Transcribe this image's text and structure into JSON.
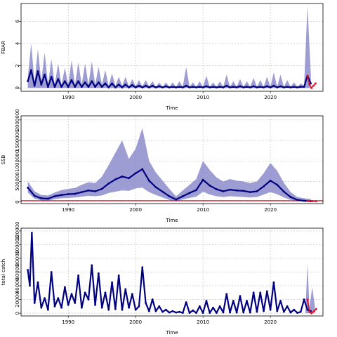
{
  "chart_data": [
    {
      "type": "line",
      "panel": "fbar",
      "xlabel": "Time",
      "ylabel": "FBAR",
      "xlim": [
        1983.0,
        2027.8
      ],
      "ylim": [
        -0.3,
        7.6
      ],
      "xticks": [
        1990,
        2000,
        2010,
        2020
      ],
      "yticks": [
        0,
        2,
        4,
        6
      ],
      "ytick_labels": [
        "0",
        "2",
        "4",
        "6"
      ],
      "grid": true,
      "colors": {
        "median": "#00007f",
        "band": "#8c8ccc",
        "projection": "#e0102a"
      },
      "series": [
        {
          "role": "median",
          "x": [
            1984,
            1984.5,
            1985,
            1985.5,
            1986,
            1986.5,
            1987,
            1987.5,
            1988,
            1988.5,
            1989,
            1989.5,
            1990,
            1990.5,
            1991,
            1991.5,
            1992,
            1992.5,
            1993,
            1993.5,
            1994,
            1994.5,
            1995,
            1995.5,
            1996,
            1996.5,
            1997,
            1997.5,
            1998,
            1998.5,
            1999,
            1999.5,
            2000,
            2000.5,
            2001,
            2001.5,
            2002,
            2002.5,
            2003,
            2003.5,
            2004,
            2004.5,
            2005,
            2005.5,
            2006,
            2006.5,
            2007,
            2007.5,
            2008,
            2008.5,
            2009,
            2009.5,
            2010,
            2010.5,
            2011,
            2011.5,
            2012,
            2012.5,
            2013,
            2013.5,
            2014,
            2014.5,
            2015,
            2015.5,
            2016,
            2016.5,
            2017,
            2017.5,
            2018,
            2018.5,
            2019,
            2019.5,
            2020,
            2020.5,
            2021,
            2021.5,
            2022,
            2022.5,
            2023,
            2023.5,
            2024,
            2024.5,
            2025,
            2025.5,
            2026
          ],
          "y": [
            0.6,
            1.6,
            0.2,
            1.5,
            0.3,
            1.2,
            0.1,
            1.0,
            0.1,
            0.8,
            0.1,
            0.6,
            0.1,
            0.7,
            0.1,
            0.6,
            0.1,
            0.5,
            0.1,
            0.6,
            0.1,
            0.5,
            0.1,
            0.4,
            0.05,
            0.4,
            0.05,
            0.3,
            0.05,
            0.3,
            0.05,
            0.25,
            0.05,
            0.2,
            0.05,
            0.2,
            0.05,
            0.2,
            0.05,
            0.15,
            0.05,
            0.15,
            0.05,
            0.1,
            0.05,
            0.1,
            0.05,
            0.2,
            0.05,
            0.1,
            0.05,
            0.1,
            0.05,
            0.15,
            0.05,
            0.1,
            0.05,
            0.1,
            0.05,
            0.2,
            0.05,
            0.1,
            0.05,
            0.15,
            0.05,
            0.1,
            0.05,
            0.15,
            0.05,
            0.1,
            0.05,
            0.15,
            0.05,
            0.2,
            0.05,
            0.15,
            0.05,
            0.1,
            0.05,
            0.1,
            0.05,
            0.1,
            0.1,
            1.1,
            0.4
          ]
        },
        {
          "role": "upper",
          "x": [
            1984,
            1984.5,
            1985,
            1985.5,
            1986,
            1986.5,
            1987,
            1987.5,
            1988,
            1988.5,
            1989,
            1989.5,
            1990,
            1990.5,
            1991,
            1991.5,
            1992,
            1992.5,
            1993,
            1993.5,
            1994,
            1994.5,
            1995,
            1995.5,
            1996,
            1996.5,
            1997,
            1997.5,
            1998,
            1998.5,
            1999,
            1999.5,
            2000,
            2000.5,
            2001,
            2001.5,
            2002,
            2002.5,
            2003,
            2003.5,
            2004,
            2004.5,
            2005,
            2005.5,
            2006,
            2006.5,
            2007,
            2007.5,
            2008,
            2008.5,
            2009,
            2009.5,
            2010,
            2010.5,
            2011,
            2011.5,
            2012,
            2012.5,
            2013,
            2013.5,
            2014,
            2014.5,
            2015,
            2015.5,
            2016,
            2016.5,
            2017,
            2017.5,
            2018,
            2018.5,
            2019,
            2019.5,
            2020,
            2020.5,
            2021,
            2021.5,
            2022,
            2022.5,
            2023,
            2023.5,
            2024,
            2024.5,
            2025,
            2025.5,
            2026
          ],
          "y": [
            0.9,
            4.0,
            0.5,
            3.5,
            0.6,
            3.2,
            0.3,
            2.6,
            0.3,
            2.2,
            0.3,
            1.8,
            0.3,
            2.5,
            0.3,
            2.3,
            0.3,
            2.2,
            0.3,
            2.4,
            0.3,
            1.9,
            0.3,
            1.6,
            0.2,
            1.3,
            0.2,
            1.0,
            0.2,
            1.0,
            0.15,
            0.8,
            0.15,
            0.7,
            0.15,
            0.7,
            0.15,
            0.6,
            0.1,
            0.5,
            0.1,
            0.5,
            0.1,
            0.5,
            0.1,
            0.6,
            0.1,
            1.9,
            0.1,
            0.5,
            0.1,
            0.6,
            0.1,
            1.1,
            0.1,
            0.5,
            0.1,
            0.6,
            0.1,
            1.2,
            0.1,
            0.6,
            0.1,
            0.8,
            0.1,
            0.6,
            0.1,
            0.9,
            0.1,
            0.7,
            0.1,
            1.0,
            0.1,
            1.4,
            0.1,
            1.2,
            0.1,
            0.7,
            0.1,
            0.5,
            0.1,
            0.4,
            0.2,
            7.4,
            1.2
          ]
        },
        {
          "role": "lower",
          "x": [
            1984,
            2026
          ],
          "y": [
            0,
            0
          ]
        },
        {
          "role": "projection",
          "x": [
            2025.5,
            2025.8,
            2026.1,
            2026.4,
            2026.7
          ],
          "y": [
            1.1,
            0.3,
            0.0,
            0.2,
            0.4
          ]
        }
      ]
    },
    {
      "type": "line",
      "panel": "ssb",
      "xlabel": "Time",
      "ylabel": "SSB",
      "xlim": [
        1983.0,
        2027.8
      ],
      "ylim": [
        -40000,
        2100000
      ],
      "xticks": [
        1990,
        2000,
        2010,
        2020
      ],
      "yticks": [
        0,
        500000,
        1000000,
        1500000,
        2000000
      ],
      "ytick_labels": [
        "0",
        "500000",
        "1000000",
        "1500000",
        "2000000"
      ],
      "grid": true,
      "reference_line": 30000,
      "colors": {
        "median": "#00007f",
        "band": "#8c8ccc",
        "reference": "#e0102a"
      },
      "series": [
        {
          "role": "median",
          "x": [
            1984,
            1985,
            1986,
            1987,
            1988,
            1989,
            1990,
            1991,
            1992,
            1993,
            1994,
            1995,
            1996,
            1997,
            1998,
            1999,
            2000,
            2001,
            2002,
            2003,
            2004,
            2005,
            2006,
            2007,
            2008,
            2009,
            2010,
            2011,
            2012,
            2013,
            2014,
            2015,
            2016,
            2017,
            2018,
            2019,
            2020,
            2021,
            2022,
            2023,
            2024,
            2025,
            2026
          ],
          "y": [
            350000,
            150000,
            90000,
            80000,
            140000,
            170000,
            190000,
            200000,
            240000,
            280000,
            260000,
            320000,
            450000,
            550000,
            620000,
            580000,
            700000,
            800000,
            520000,
            360000,
            250000,
            140000,
            60000,
            140000,
            220000,
            290000,
            540000,
            400000,
            310000,
            260000,
            300000,
            280000,
            270000,
            240000,
            260000,
            380000,
            520000,
            420000,
            250000,
            120000,
            50000,
            30000,
            20000
          ]
        },
        {
          "role": "upper",
          "x": [
            1984,
            1985,
            1986,
            1987,
            1988,
            1989,
            1990,
            1991,
            1992,
            1993,
            1994,
            1995,
            1996,
            1997,
            1998,
            1999,
            2000,
            2001,
            2002,
            2003,
            2004,
            2005,
            2006,
            2007,
            2008,
            2009,
            2010,
            2011,
            2012,
            2013,
            2014,
            2015,
            2016,
            2017,
            2018,
            2019,
            2020,
            2021,
            2022,
            2023,
            2024,
            2025,
            2026
          ],
          "y": [
            500000,
            260000,
            170000,
            160000,
            230000,
            290000,
            320000,
            340000,
            420000,
            480000,
            460000,
            620000,
            900000,
            1200000,
            1500000,
            1050000,
            1300000,
            1800000,
            1000000,
            720000,
            520000,
            320000,
            140000,
            280000,
            420000,
            560000,
            1000000,
            780000,
            600000,
            500000,
            560000,
            520000,
            500000,
            460000,
            500000,
            700000,
            950000,
            760000,
            470000,
            240000,
            120000,
            90000,
            70000
          ]
        },
        {
          "role": "lower",
          "x": [
            1984,
            1985,
            1986,
            1987,
            1988,
            1989,
            1990,
            1991,
            1992,
            1993,
            1994,
            1995,
            1996,
            1997,
            1998,
            1999,
            2000,
            2001,
            2002,
            2003,
            2004,
            2005,
            2006,
            2007,
            2008,
            2009,
            2010,
            2011,
            2012,
            2013,
            2014,
            2015,
            2016,
            2017,
            2018,
            2019,
            2020,
            2021,
            2022,
            2023,
            2024,
            2025,
            2026
          ],
          "y": [
            230000,
            80000,
            40000,
            30000,
            70000,
            90000,
            100000,
            110000,
            130000,
            150000,
            140000,
            160000,
            220000,
            250000,
            280000,
            270000,
            330000,
            350000,
            240000,
            170000,
            110000,
            50000,
            20000,
            60000,
            100000,
            130000,
            250000,
            180000,
            140000,
            120000,
            140000,
            130000,
            120000,
            110000,
            120000,
            180000,
            240000,
            190000,
            110000,
            50000,
            20000,
            10000,
            5000
          ]
        },
        {
          "role": "projection",
          "x": [
            2025.5,
            2026.2,
            2026.8
          ],
          "y": [
            25000,
            20000,
            15000
          ]
        }
      ]
    },
    {
      "type": "line",
      "panel": "catch",
      "xlabel": "Time",
      "ylabel": "total catch",
      "xlim": [
        1983.0,
        2027.8
      ],
      "ylim": [
        -4000,
        124000
      ],
      "xticks": [
        1990,
        2000,
        2010,
        2020
      ],
      "yticks": [
        0,
        20000,
        40000,
        60000,
        80000,
        100000,
        120000
      ],
      "ytick_labels": [
        "0",
        "20000",
        "40000",
        "60000",
        "80000",
        "100000",
        "120000"
      ],
      "grid": true,
      "colors": {
        "median": "#00007f",
        "band": "#8c8ccc",
        "projection": "#e0102a"
      },
      "series": [
        {
          "role": "median",
          "x": [
            1984,
            1984.3,
            1984.6,
            1985,
            1985.5,
            1986,
            1986.5,
            1987,
            1987.5,
            1988,
            1988.5,
            1989,
            1989.5,
            1990,
            1990.5,
            1991,
            1991.5,
            1992,
            1992.5,
            1993,
            1993.5,
            1994,
            1994.5,
            1995,
            1995.5,
            1996,
            1996.5,
            1997,
            1997.5,
            1998,
            1998.5,
            1999,
            1999.5,
            2000,
            2000.5,
            2001,
            2001.5,
            2002,
            2002.5,
            2003,
            2003.5,
            2004,
            2004.5,
            2005,
            2005.5,
            2006,
            2006.5,
            2007,
            2007.5,
            2008,
            2008.5,
            2009,
            2009.5,
            2010,
            2010.5,
            2011,
            2011.5,
            2012,
            2012.5,
            2013,
            2013.5,
            2014,
            2014.5,
            2015,
            2015.5,
            2016,
            2016.5,
            2017,
            2017.5,
            2018,
            2018.5,
            2019,
            2019.5,
            2020,
            2020.5,
            2021,
            2021.5,
            2022,
            2022.5,
            2023,
            2023.5,
            2024,
            2024.5,
            2025,
            2025.5,
            2026
          ],
          "y": [
            63000,
            40000,
            117000,
            15000,
            45000,
            8000,
            22000,
            5000,
            60000,
            10000,
            22000,
            8000,
            38000,
            12000,
            28000,
            15000,
            55000,
            8000,
            30000,
            20000,
            70000,
            12000,
            58000,
            8000,
            30000,
            5000,
            45000,
            6000,
            55000,
            5000,
            35000,
            8000,
            28000,
            5000,
            10000,
            67000,
            15000,
            3000,
            20000,
            3000,
            10000,
            2000,
            5000,
            1000,
            3000,
            1000,
            2000,
            500,
            16000,
            500,
            4000,
            500,
            10000,
            500,
            18000,
            500,
            8000,
            500,
            10000,
            1000,
            28000,
            1000,
            18000,
            1000,
            25000,
            1000,
            18000,
            1000,
            30000,
            2000,
            30000,
            3000,
            32000,
            5000,
            45000,
            3000,
            18000,
            2000,
            10000,
            1000,
            5000,
            500,
            2000,
            20000,
            5000,
            3000
          ]
        },
        {
          "role": "upper",
          "x": [
            2025.2,
            2025.5,
            2025.8,
            2026.2,
            2026.6
          ],
          "y": [
            2000,
            72000,
            8000,
            38000,
            10000
          ]
        },
        {
          "role": "projection",
          "x": [
            2025.5,
            2025.8,
            2026.1,
            2026.5,
            2026.8
          ],
          "y": [
            20000,
            2000,
            0,
            3000,
            6000
          ]
        }
      ]
    }
  ]
}
